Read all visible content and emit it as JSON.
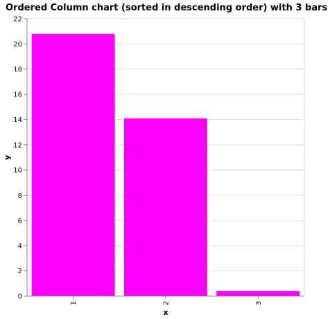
{
  "chart_data": {
    "type": "bar",
    "title": "Ordered Column chart (sorted in descending order) with 3 bars",
    "xlabel": "x",
    "ylabel": "y",
    "categories": [
      "1",
      "2",
      "3"
    ],
    "values": [
      20.8,
      14.1,
      0.4
    ],
    "ylim": [
      0,
      22
    ],
    "yticks": [
      0,
      2,
      4,
      6,
      8,
      10,
      12,
      14,
      16,
      18,
      20,
      22
    ],
    "grid": true,
    "bar_color": "#ff00ff"
  }
}
